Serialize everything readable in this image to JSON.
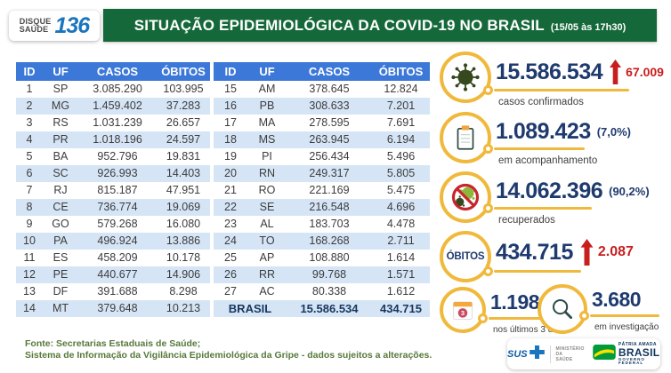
{
  "header": {
    "hotline": {
      "line1": "DISQUE",
      "line2": "SAÚDE",
      "number": "136"
    },
    "title": "SITUAÇÃO EPIDEMIOLÓGICA DA COVID-19 NO BRASIL",
    "timestamp": "(15/05 às 17h30)"
  },
  "chart_data": {
    "type": "table",
    "title": "SITUAÇÃO EPIDEMIOLÓGICA DA COVID-19 NO BRASIL",
    "as_of": "15/05 às 17h30",
    "columns": [
      "ID",
      "UF",
      "CASOS",
      "ÓBITOS"
    ],
    "rows": [
      [
        "1",
        "SP",
        "3.085.290",
        "103.995"
      ],
      [
        "2",
        "MG",
        "1.459.402",
        "37.283"
      ],
      [
        "3",
        "RS",
        "1.031.239",
        "26.657"
      ],
      [
        "4",
        "PR",
        "1.018.196",
        "24.597"
      ],
      [
        "5",
        "BA",
        "952.796",
        "19.831"
      ],
      [
        "6",
        "SC",
        "926.993",
        "14.403"
      ],
      [
        "7",
        "RJ",
        "815.187",
        "47.951"
      ],
      [
        "8",
        "CE",
        "736.774",
        "19.069"
      ],
      [
        "9",
        "GO",
        "579.268",
        "16.080"
      ],
      [
        "10",
        "PA",
        "496.924",
        "13.886"
      ],
      [
        "11",
        "ES",
        "458.209",
        "10.178"
      ],
      [
        "12",
        "PE",
        "440.677",
        "14.906"
      ],
      [
        "13",
        "DF",
        "391.688",
        "8.298"
      ],
      [
        "14",
        "MT",
        "379.648",
        "10.213"
      ],
      [
        "15",
        "AM",
        "378.645",
        "12.824"
      ],
      [
        "16",
        "PB",
        "308.633",
        "7.201"
      ],
      [
        "17",
        "MA",
        "278.595",
        "7.691"
      ],
      [
        "18",
        "MS",
        "263.945",
        "6.194"
      ],
      [
        "19",
        "PI",
        "256.434",
        "5.496"
      ],
      [
        "20",
        "RN",
        "249.317",
        "5.805"
      ],
      [
        "21",
        "RO",
        "221.169",
        "5.475"
      ],
      [
        "22",
        "SE",
        "216.548",
        "4.696"
      ],
      [
        "23",
        "AL",
        "183.703",
        "4.478"
      ],
      [
        "24",
        "TO",
        "168.268",
        "2.711"
      ],
      [
        "25",
        "AP",
        "108.880",
        "1.614"
      ],
      [
        "26",
        "RR",
        "99.768",
        "1.571"
      ],
      [
        "27",
        "AC",
        "80.338",
        "1.612"
      ]
    ],
    "total_row": [
      "BRASIL",
      "15.586.534",
      "434.715"
    ],
    "summary": {
      "confirmed": {
        "value": "15.586.534",
        "delta": "67.009",
        "label": "casos confirmados"
      },
      "monitoring": {
        "value": "1.089.423",
        "pct": "(7,0%)",
        "label": "em acompanhamento"
      },
      "recovered": {
        "value": "14.062.396",
        "pct": "(90,2%)",
        "label": "recuperados"
      },
      "deaths": {
        "badge": "ÓBITOS",
        "value": "434.715",
        "delta": "2.087"
      },
      "deaths_last3days": {
        "value": "1.198",
        "label": "nos últimos 3 dias",
        "calendar_badge": "3"
      },
      "under_investigation": {
        "value": "3.680",
        "label": "em investigação"
      }
    }
  },
  "footer": {
    "source_line1": "Fonte: Secretarias Estaduais de Saúde;",
    "source_line2": "Sistema de Informação da Vigilância Epidemiológica da Gripe - dados sujeitos a alterações.",
    "logos": {
      "sus": "SUS",
      "ministry_line1": "MINISTÉRIO DA",
      "ministry_line2": "SAÚDE",
      "brand_top": "PÁTRIA AMADA",
      "brand_name": "BRASIL",
      "brand_sub": "GOVERNO FEDERAL"
    }
  },
  "colors": {
    "banner_green": "#156839",
    "table_header_blue": "#3C78D8",
    "table_alt_row": "#D6E5F6",
    "value_navy": "#1E3A6E",
    "delta_red": "#C81E1E",
    "accent_yellow": "#F0B93B",
    "logo_blue": "#1B75BC",
    "footer_green": "#56793B"
  }
}
